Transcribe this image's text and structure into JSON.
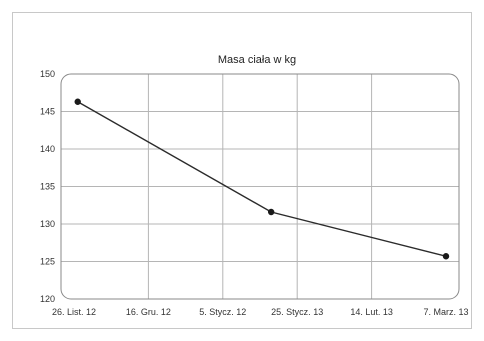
{
  "chart_data": {
    "type": "line",
    "title": "Masa ciała w kg",
    "xlabel": "",
    "ylabel": "",
    "x_ticks": [
      "26. List. 12",
      "16. Gru. 12",
      "5. Stycz. 12",
      "25. Stycz. 13",
      "14. Lut. 13",
      "7. Marz. 13"
    ],
    "ylim": [
      120,
      150
    ],
    "y_ticks": [
      120,
      125,
      130,
      135,
      140,
      145,
      150
    ],
    "grid": true,
    "legend": "none",
    "series": [
      {
        "x_position": [
          0.05,
          2.65,
          5.0
        ],
        "values": [
          146.3,
          131.6,
          125.7
        ]
      }
    ],
    "colors": {
      "line": "#2b2b2b",
      "marker": "#1a1a1a",
      "grid": "#b5b5b5",
      "frame": "#8a8a8a"
    }
  }
}
